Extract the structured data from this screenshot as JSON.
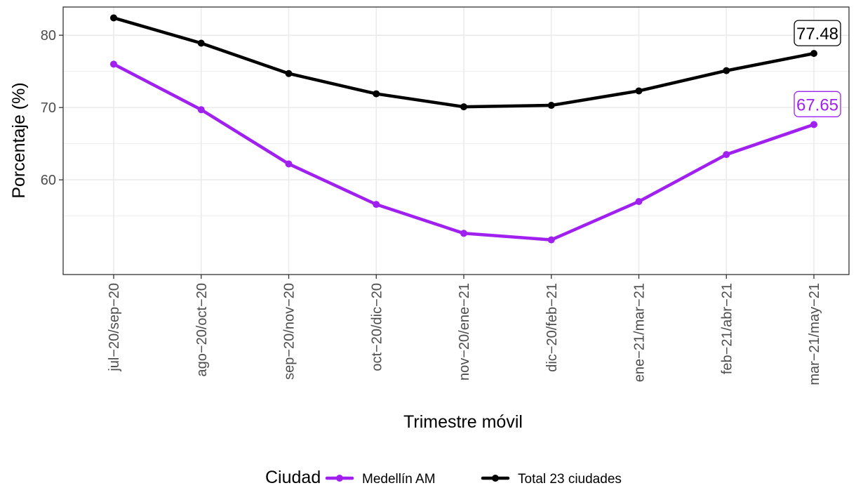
{
  "chart_data": {
    "type": "line",
    "xlabel": "Trimestre móvil",
    "ylabel": "Porcentaje (%)",
    "categories": [
      "jul−20/sep−20",
      "ago−20/oct−20",
      "sep−20/nov−20",
      "oct−20/dic−20",
      "nov−20/ene−21",
      "dic−20/feb−21",
      "ene−21/mar−21",
      "feb−21/abr−21",
      "mar−21/may−21"
    ],
    "y_ticks": [
      60,
      70,
      80
    ],
    "ylim": [
      46.9,
      83.9
    ],
    "grid": true,
    "legend": {
      "title": "Ciudad",
      "position": "bottom"
    },
    "series": [
      {
        "name": "Medellín AM",
        "color": "#a020f0",
        "values": [
          76.0,
          69.7,
          62.2,
          56.6,
          52.6,
          51.7,
          57.0,
          63.5,
          67.65
        ],
        "end_label": "67.65"
      },
      {
        "name": "Total 23 ciudades",
        "color": "#000000",
        "values": [
          82.4,
          78.9,
          74.7,
          71.9,
          70.1,
          70.3,
          72.3,
          75.1,
          77.48
        ],
        "end_label": "77.48"
      }
    ]
  }
}
